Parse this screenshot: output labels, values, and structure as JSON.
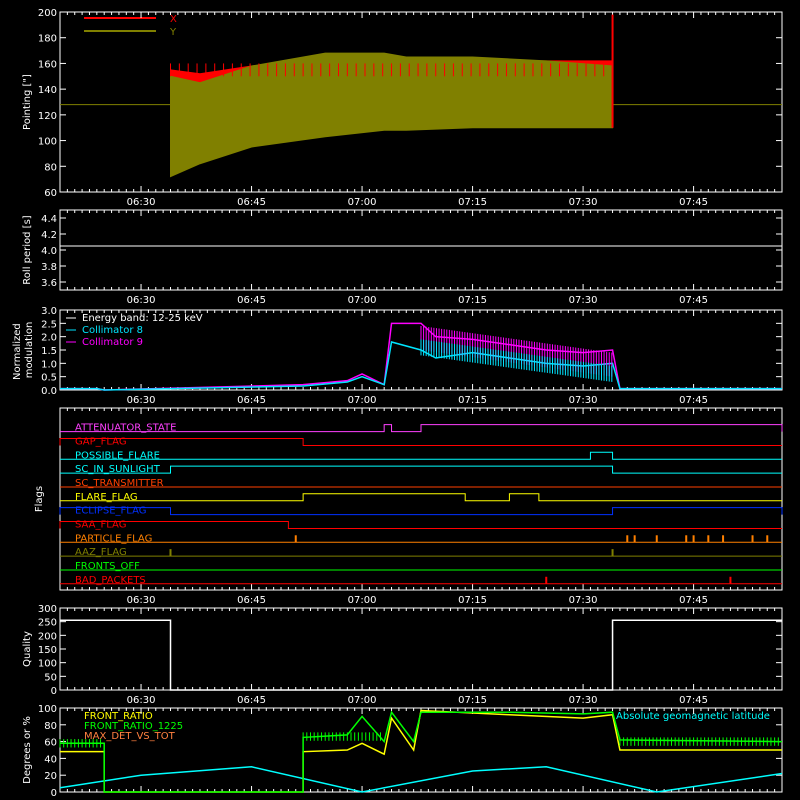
{
  "colors": {
    "x": "#ff0000",
    "y": "#808000",
    "white": "#ffffff",
    "coll8": "#00e5ff",
    "coll9": "#ff00ff",
    "yellow": "#ffff00",
    "green": "#00ff00",
    "cyan": "#00ffff"
  },
  "time_labels": [
    "06:30",
    "06:45",
    "07:00",
    "07:15",
    "07:30",
    "07:45"
  ],
  "chart_data": [
    {
      "type": "line",
      "id": "pointing",
      "ylabel": "Pointing [\"]",
      "ylim": [
        60,
        200
      ],
      "yticks": [
        "60",
        "80",
        "100",
        "120",
        "140",
        "160",
        "180",
        "200"
      ],
      "xlim": [
        "06:19",
        "07:57"
      ],
      "series": [
        {
          "name": "X",
          "color": "#ff0000",
          "envelope": {
            "x": [
              "06:34",
              "06:38",
              "06:45",
              "06:55",
              "07:03",
              "07:06",
              "07:15",
              "07:25",
              "07:34"
            ],
            "upper": [
              155,
              152,
              158,
              162,
              163,
              164,
              162,
              162,
              162
            ],
            "lower": [
              75,
              85,
              100,
              107,
              112,
              110,
              112,
              112,
              112
            ]
          }
        },
        {
          "name": "Y",
          "color": "#808000",
          "envelope": {
            "x": [
              "06:34",
              "06:38",
              "06:45",
              "06:55",
              "07:03",
              "07:06",
              "07:15",
              "07:25",
              "07:34"
            ],
            "upper": [
              150,
              145,
              158,
              168,
              168,
              165,
              165,
              162,
              158
            ],
            "lower": [
              72,
              82,
              95,
              103,
              108,
              108,
              110,
              110,
              110
            ]
          }
        }
      ],
      "baseline": 128
    },
    {
      "type": "line",
      "id": "roll",
      "ylabel": "Roll period [s]",
      "ylim": [
        3.5,
        4.5
      ],
      "yticks": [
        "3.6",
        "3.8",
        "4.0",
        "4.2",
        "4.4"
      ],
      "series": [
        {
          "name": "",
          "color": "#ffffff",
          "x": [
            "06:19",
            "07:57"
          ],
          "y": [
            4.05,
            4.05
          ]
        }
      ]
    },
    {
      "type": "line",
      "id": "modulation",
      "ylabel": "Normalized modulation",
      "ylim": [
        0,
        3.0
      ],
      "yticks": [
        "0.0",
        "0.5",
        "1.0",
        "1.5",
        "2.0",
        "2.5",
        "3.0"
      ],
      "legend": [
        "Energy band: 12-25 keV",
        "Collimator 8",
        "Collimator 9"
      ],
      "series": [
        {
          "name": "Collimator 8",
          "color": "#00e5ff",
          "x": [
            "06:19",
            "06:24",
            "06:25",
            "06:52",
            "06:58",
            "07:00",
            "07:03",
            "07:04",
            "07:08",
            "07:10",
            "07:15",
            "07:20",
            "07:25",
            "07:30",
            "07:34",
            "07:35",
            "07:57"
          ],
          "y": [
            0.05,
            0.05,
            0.0,
            0.15,
            0.3,
            0.5,
            0.2,
            1.8,
            1.5,
            1.2,
            1.4,
            1.2,
            1.0,
            0.9,
            1.0,
            0.05,
            0.05
          ]
        },
        {
          "name": "Collimator 9",
          "color": "#ff00ff",
          "x": [
            "06:19",
            "06:24",
            "06:25",
            "06:52",
            "06:58",
            "07:00",
            "07:03",
            "07:04",
            "07:08",
            "07:10",
            "07:15",
            "07:20",
            "07:25",
            "07:30",
            "07:34",
            "07:35",
            "07:57"
          ],
          "y": [
            0.05,
            0.05,
            0.0,
            0.2,
            0.35,
            0.6,
            0.2,
            2.5,
            2.5,
            2.0,
            1.9,
            1.7,
            1.5,
            1.4,
            1.5,
            0.05,
            0.05
          ]
        }
      ]
    },
    {
      "type": "line",
      "id": "flags",
      "ylabel": "Flags",
      "flags": [
        {
          "name": "ATTENUATOR_STATE",
          "color": "#ff40ff",
          "high": [
            [
              "07:03",
              "07:04"
            ],
            [
              "07:08",
              "07:57"
            ]
          ]
        },
        {
          "name": "GAP_FLAG",
          "color": "#ff0000",
          "high": [
            [
              "06:19",
              "06:52"
            ]
          ]
        },
        {
          "name": "POSSIBLE_FLARE",
          "color": "#00ffff",
          "high": [
            [
              "07:31",
              "07:34"
            ]
          ]
        },
        {
          "name": "SC_IN_SUNLIGHT",
          "color": "#00ffff",
          "high": [
            [
              "06:34",
              "07:34"
            ]
          ]
        },
        {
          "name": "SC_TRANSMITTER",
          "color": "#ff4000",
          "high": []
        },
        {
          "name": "FLARE_FLAG",
          "color": "#ffff00",
          "high": [
            [
              "06:52",
              "07:14"
            ],
            [
              "07:20",
              "07:24"
            ]
          ]
        },
        {
          "name": "ECLIPSE_FLAG",
          "color": "#0030ff",
          "high": [
            [
              "06:19",
              "06:34"
            ],
            [
              "07:34",
              "07:57"
            ]
          ]
        },
        {
          "name": "SAA_FLAG",
          "color": "#ff0000",
          "high": [
            [
              "06:19",
              "06:50"
            ]
          ]
        },
        {
          "name": "PARTICLE_FLAG",
          "color": "#ff8000",
          "high": []
        },
        {
          "name": "AAZ_FLAG",
          "color": "#808000",
          "high": []
        },
        {
          "name": "FRONTS_OFF",
          "color": "#00ff00",
          "high": []
        },
        {
          "name": "BAD_PACKETS",
          "color": "#ff0000",
          "high": []
        }
      ],
      "spikes": {
        "PARTICLE_FLAG": [
          "06:51",
          "07:36",
          "07:37",
          "07:40",
          "07:44",
          "07:45",
          "07:47",
          "07:49",
          "07:53",
          "07:55"
        ],
        "AAZ_FLAG": [
          "06:34",
          "07:34"
        ],
        "BAD_PACKETS": [
          "07:25",
          "07:50"
        ]
      }
    },
    {
      "type": "line",
      "id": "quality",
      "ylabel": "Quality",
      "ylim": [
        0,
        300
      ],
      "yticks": [
        "0",
        "50",
        "100",
        "150",
        "200",
        "250",
        "300"
      ],
      "series": [
        {
          "name": "",
          "color": "#ffffff",
          "x": [
            "06:19",
            "06:34",
            "06:34",
            "07:34",
            "07:34",
            "07:57"
          ],
          "y": [
            255,
            255,
            0,
            0,
            255,
            255
          ]
        }
      ]
    },
    {
      "type": "line",
      "id": "fronts",
      "ylabel": "Degrees or %",
      "ylim": [
        0,
        100
      ],
      "yticks": [
        "0",
        "20",
        "40",
        "60",
        "80",
        "100"
      ],
      "legend_left": [
        "FRONT_RATIO",
        "FRONT_RATIO_1225",
        "MAX_DET_VS_TOT"
      ],
      "legend_right": "Absolute geomagnetic latitude",
      "series": [
        {
          "name": "FRONT_RATIO",
          "color": "#ffff00",
          "x": [
            "06:19",
            "06:25",
            "06:25",
            "06:52",
            "06:52",
            "06:58",
            "07:00",
            "07:03",
            "07:04",
            "07:07",
            "07:08",
            "07:20",
            "07:30",
            "07:34",
            "07:35",
            "07:57"
          ],
          "y": [
            48,
            48,
            0,
            0,
            48,
            50,
            58,
            45,
            88,
            50,
            97,
            92,
            88,
            92,
            50,
            50
          ]
        },
        {
          "name": "FRONT_RATIO_1225",
          "color": "#00ff00",
          "x": [
            "06:19",
            "06:25",
            "06:25",
            "06:52",
            "06:52",
            "06:58",
            "07:00",
            "07:03",
            "07:04",
            "07:07",
            "07:08",
            "07:20",
            "07:30",
            "07:34",
            "07:35",
            "07:57"
          ],
          "y": [
            58,
            58,
            0,
            0,
            65,
            68,
            90,
            60,
            95,
            60,
            95,
            95,
            93,
            95,
            62,
            60
          ]
        },
        {
          "name": "Absolute geomagnetic latitude",
          "color": "#00ffff",
          "x": [
            "06:19",
            "06:30",
            "06:45",
            "07:00",
            "07:15",
            "07:25",
            "07:40",
            "07:57"
          ],
          "y": [
            5,
            20,
            30,
            0,
            25,
            30,
            0,
            22
          ]
        }
      ]
    }
  ]
}
